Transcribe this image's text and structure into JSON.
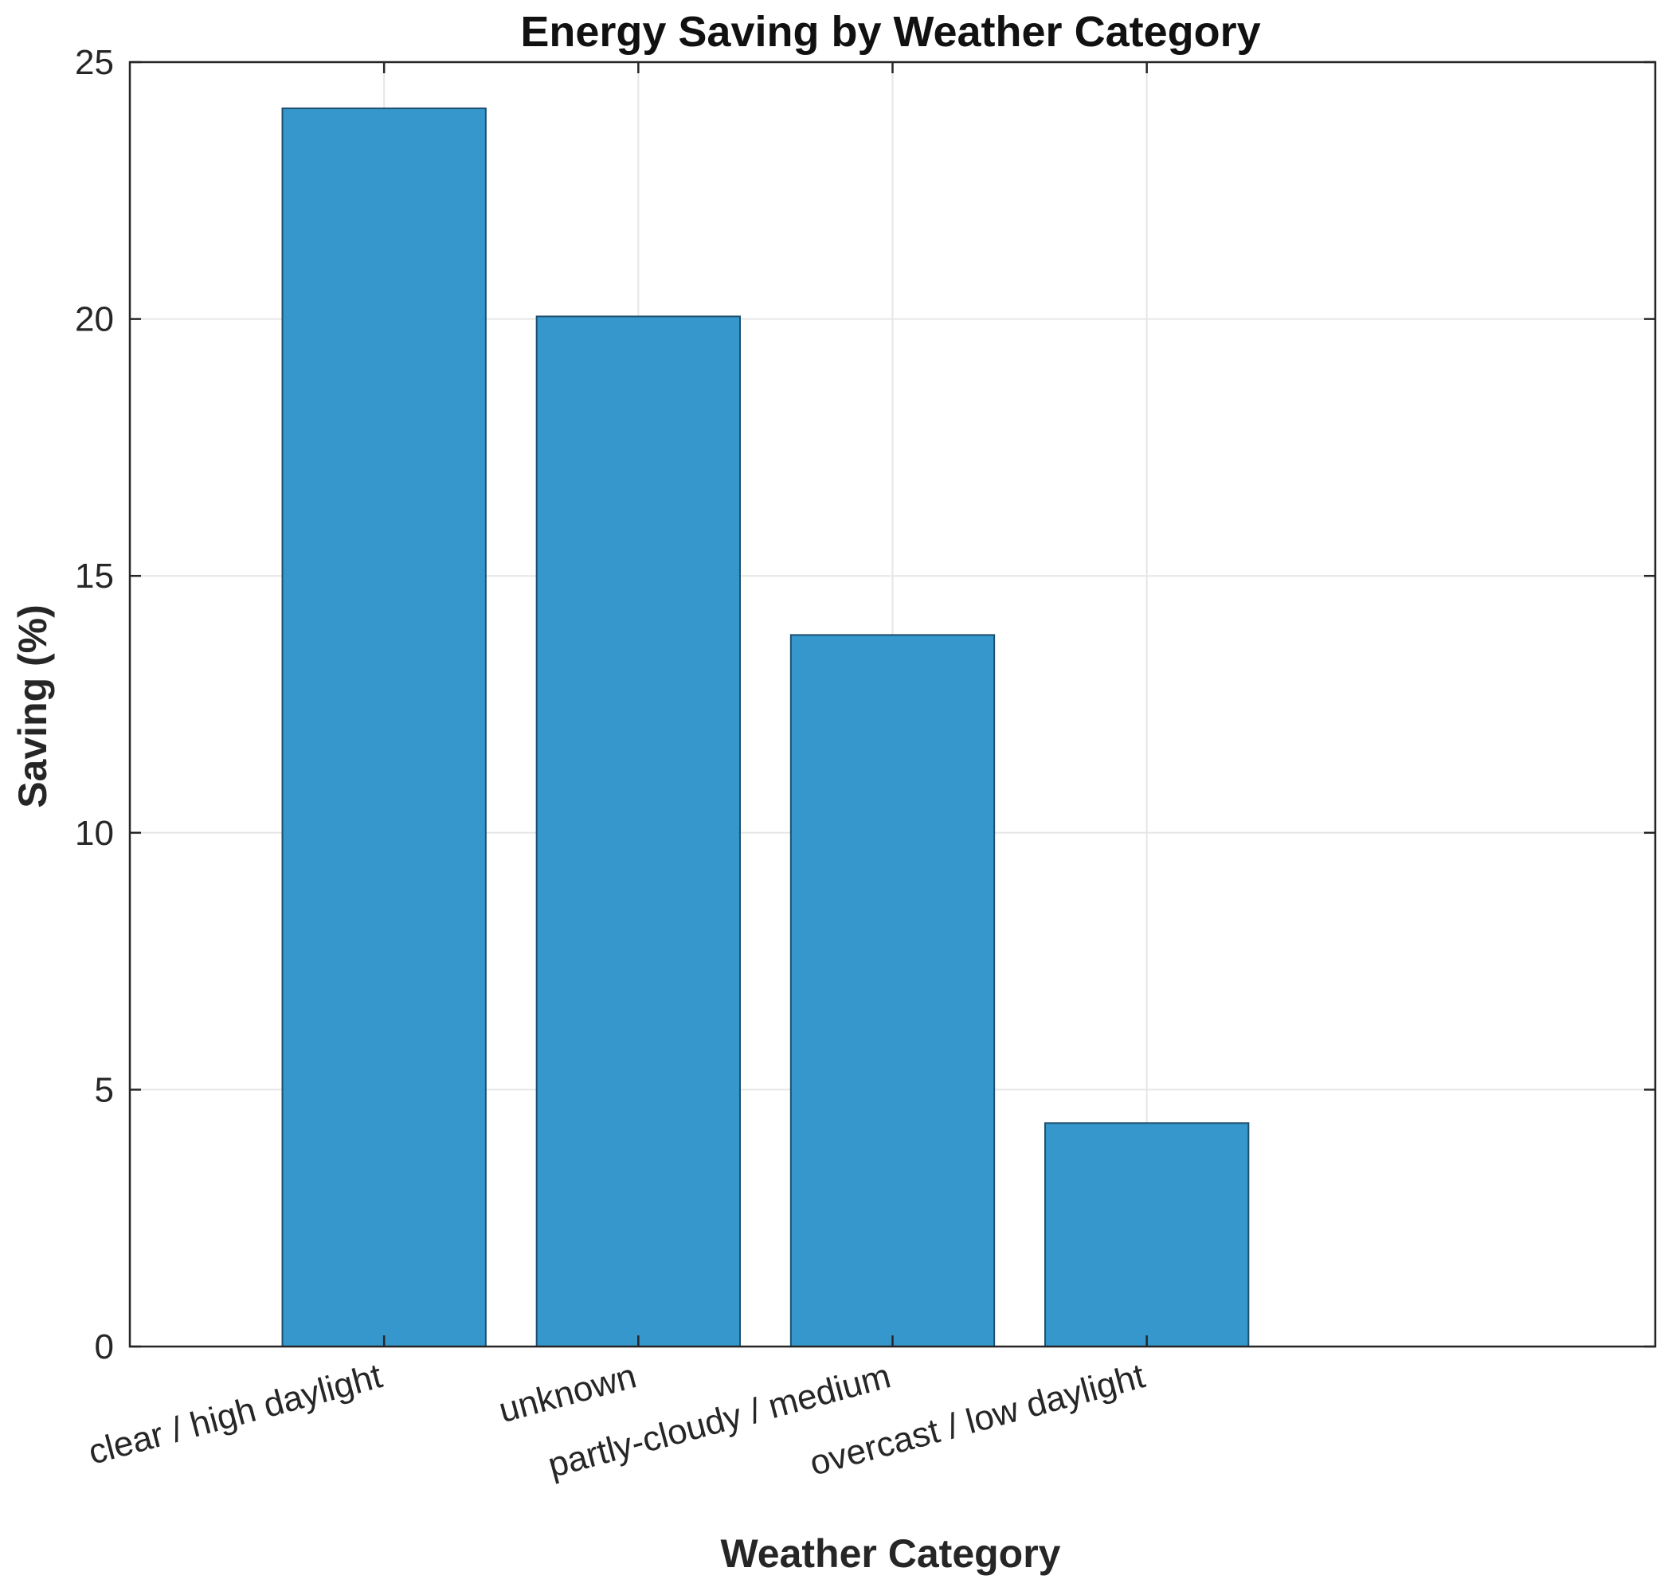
{
  "chart_data": {
    "type": "bar",
    "title": "Energy Saving by Weather Category",
    "xlabel": "Weather Category",
    "ylabel": "Saving (%)",
    "categories": [
      "clear / high daylight",
      "unknown",
      "partly-cloudy / medium",
      "overcast / low daylight"
    ],
    "values": [
      24.1,
      20.05,
      13.85,
      4.35
    ],
    "ylim": [
      0,
      25
    ],
    "yticks": [
      "0",
      "5",
      "10",
      "15",
      "20",
      "25"
    ],
    "grid": true,
    "bar_color": "#3597cc"
  }
}
